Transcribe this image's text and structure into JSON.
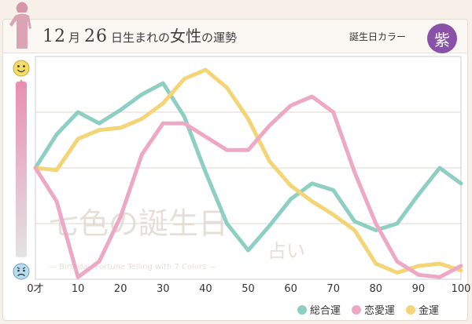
{
  "header": {
    "month_num": "12",
    "month_unit": "月",
    "day_num": "26",
    "title_rest_1": "日生まれの",
    "title_em": "女性",
    "title_rest_2": "の運勢",
    "color_label": "誕生日カラー",
    "color_name": "紫",
    "color_hex": "#8a51a8"
  },
  "watermark": {
    "line1": "七色の誕生日",
    "line2": "占い",
    "sub": "— Birthday Fortune Telling with 7 Colors —"
  },
  "mood_icons": {
    "top": "smile-face-icon",
    "bottom": "worried-face-icon"
  },
  "chart_data": {
    "type": "line",
    "x_tick_labels": [
      "0才",
      "10",
      "20",
      "30",
      "40",
      "50",
      "60",
      "70",
      "80",
      "90",
      "100"
    ],
    "x": [
      0,
      5,
      10,
      15,
      20,
      25,
      30,
      35,
      40,
      45,
      50,
      55,
      60,
      65,
      70,
      75,
      80,
      85,
      90,
      95,
      100
    ],
    "xlim": [
      0,
      100
    ],
    "ylim": [
      0,
      100
    ],
    "grid": true,
    "legend_position": "bottom-right",
    "series": [
      {
        "name": "総合運",
        "color": "#8ecfc4",
        "values": [
          50,
          65,
          75,
          70,
          76,
          83,
          88,
          73,
          48,
          25,
          13,
          24,
          36,
          43,
          40,
          26,
          22,
          25,
          38,
          50,
          43
        ]
      },
      {
        "name": "恋愛運",
        "color": "#eda8c3",
        "values": [
          50,
          35,
          1,
          8,
          28,
          56,
          70,
          70,
          64,
          58,
          58,
          69,
          78,
          82,
          75,
          48,
          25,
          8,
          2,
          1,
          6
        ]
      },
      {
        "name": "金運",
        "color": "#f3d476",
        "values": [
          50,
          49,
          63,
          67,
          68,
          72,
          79,
          90,
          94,
          86,
          72,
          53,
          42,
          35,
          29,
          22,
          7,
          3,
          6,
          7,
          4
        ]
      }
    ]
  }
}
